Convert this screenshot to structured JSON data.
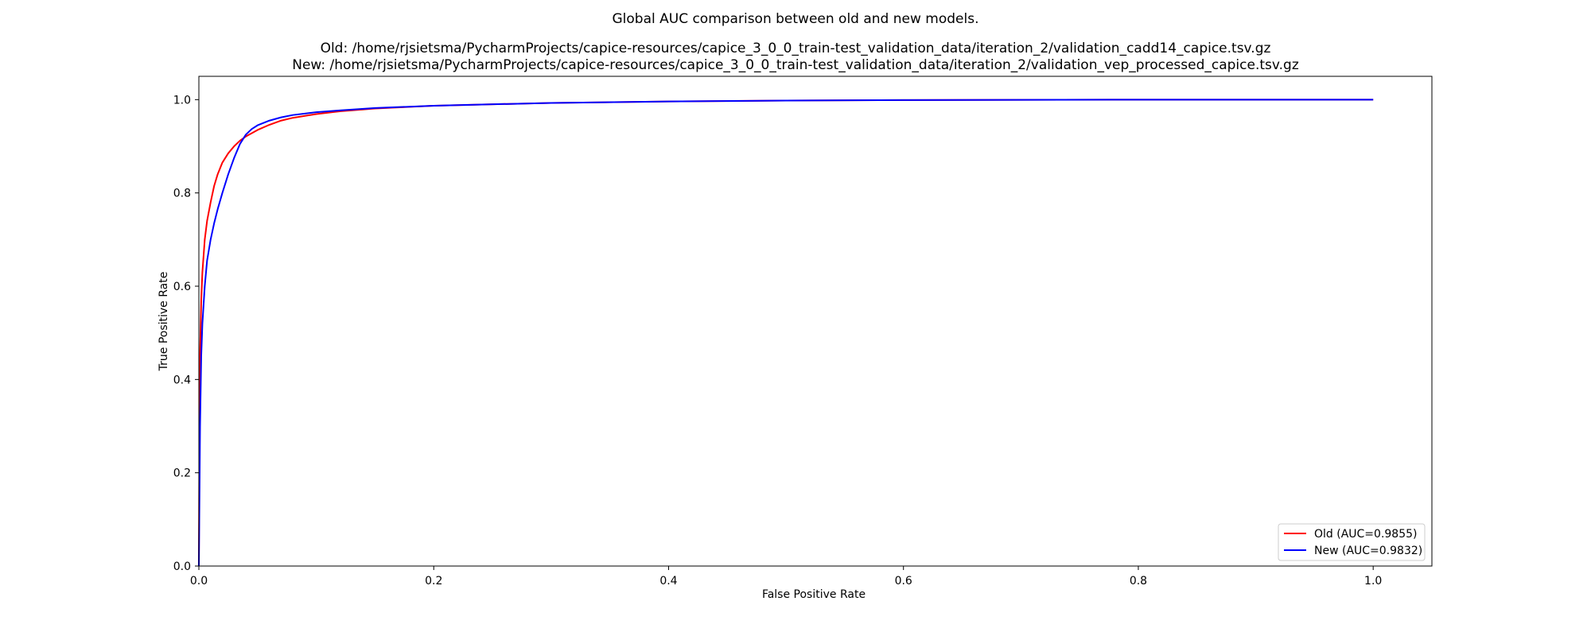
{
  "chart_data": {
    "type": "line",
    "title": "Global AUC comparison between old and new models.",
    "subtitle_lines": [
      "Old: /home/rjsietsma/PycharmProjects/capice-resources/capice_3_0_0_train-test_validation_data/iteration_2/validation_cadd14_capice.tsv.gz",
      "New: /home/rjsietsma/PycharmProjects/capice-resources/capice_3_0_0_train-test_validation_data/iteration_2/validation_vep_processed_capice.tsv.gz"
    ],
    "xlabel": "False Positive Rate",
    "ylabel": "True Positive Rate",
    "xlim": [
      0.0,
      1.05
    ],
    "ylim": [
      0.0,
      1.05
    ],
    "xticks": [
      "0.0",
      "0.2",
      "0.4",
      "0.6",
      "0.8",
      "1.0"
    ],
    "yticks": [
      "0.0",
      "0.2",
      "0.4",
      "0.6",
      "0.8",
      "1.0"
    ],
    "grid": false,
    "legend_position": "lower-right",
    "series": [
      {
        "name": "Old (AUC=0.9855)",
        "color": "#ff0000",
        "x": [
          0.0,
          0.0005,
          0.001,
          0.002,
          0.003,
          0.005,
          0.007,
          0.01,
          0.013,
          0.016,
          0.02,
          0.025,
          0.03,
          0.035,
          0.04,
          0.05,
          0.06,
          0.07,
          0.08,
          0.1,
          0.12,
          0.15,
          0.2,
          0.3,
          0.4,
          0.5,
          0.6,
          0.8,
          1.0
        ],
        "y": [
          0.0,
          0.3,
          0.45,
          0.57,
          0.63,
          0.7,
          0.74,
          0.78,
          0.815,
          0.84,
          0.865,
          0.885,
          0.9,
          0.912,
          0.921,
          0.935,
          0.946,
          0.955,
          0.961,
          0.969,
          0.975,
          0.981,
          0.987,
          0.993,
          0.996,
          0.998,
          0.999,
          1.0,
          1.0
        ]
      },
      {
        "name": "New (AUC=0.9832)",
        "color": "#0000ff",
        "x": [
          0.0,
          0.001,
          0.002,
          0.003,
          0.005,
          0.007,
          0.01,
          0.013,
          0.016,
          0.02,
          0.025,
          0.03,
          0.035,
          0.04,
          0.045,
          0.05,
          0.06,
          0.07,
          0.08,
          0.1,
          0.12,
          0.15,
          0.2,
          0.3,
          0.4,
          0.5,
          0.6,
          0.8,
          1.0
        ],
        "y": [
          0.0,
          0.3,
          0.45,
          0.52,
          0.6,
          0.655,
          0.7,
          0.735,
          0.765,
          0.8,
          0.84,
          0.875,
          0.905,
          0.925,
          0.937,
          0.945,
          0.955,
          0.962,
          0.967,
          0.973,
          0.977,
          0.982,
          0.987,
          0.993,
          0.996,
          0.998,
          0.999,
          1.0,
          1.0
        ]
      }
    ]
  }
}
